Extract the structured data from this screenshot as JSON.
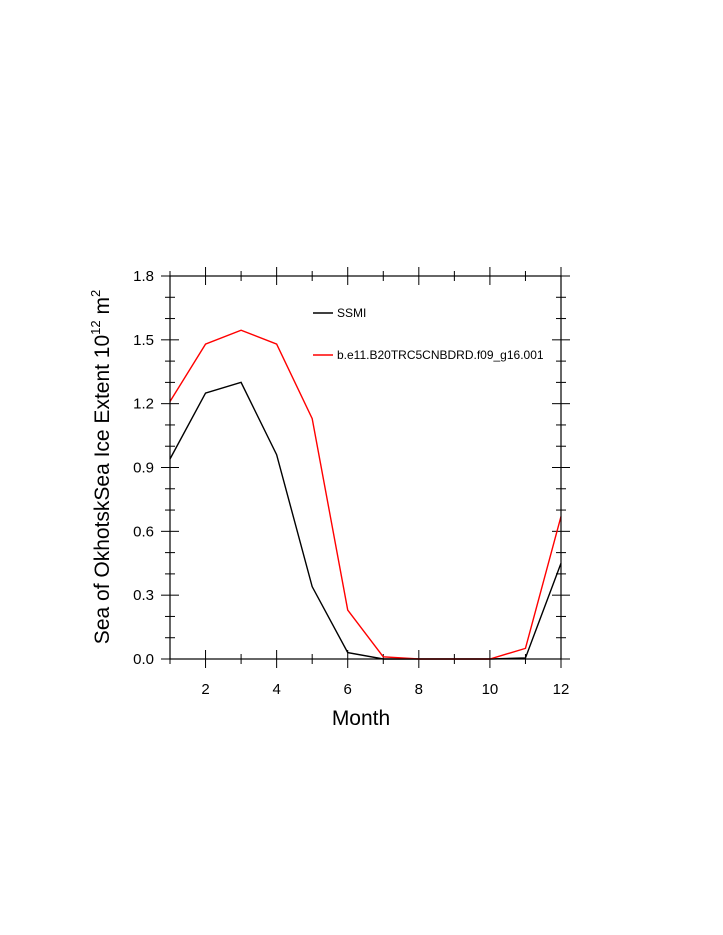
{
  "chart_data": {
    "type": "line",
    "title": "",
    "xlabel": "Month",
    "ylabel": {
      "main": "Sea of OkhotskSea Ice Extent 10",
      "exp": "12",
      "unit": " m",
      "unit_exp": "2"
    },
    "xlim": [
      1,
      12
    ],
    "ylim": [
      0,
      1.8
    ],
    "x": [
      1,
      2,
      3,
      4,
      5,
      6,
      7,
      8,
      9,
      10,
      11,
      12
    ],
    "x_ticks": [
      2,
      4,
      6,
      8,
      10,
      12
    ],
    "x_tick_labels": [
      "2",
      "4",
      "6",
      "8",
      "10",
      "12"
    ],
    "y_ticks": [
      0.0,
      0.3,
      0.6,
      0.9,
      1.2,
      1.5,
      1.8
    ],
    "y_tick_labels": [
      "0.0",
      "0.3",
      "0.6",
      "0.9",
      "1.2",
      "1.5",
      "1.8"
    ],
    "legend_position": "top-right",
    "series": [
      {
        "name": "SSMI",
        "color": "#000000",
        "values": [
          0.94,
          1.25,
          1.3,
          0.96,
          0.34,
          0.03,
          0.0,
          0.0,
          0.0,
          0.0,
          0.005,
          0.45
        ]
      },
      {
        "name": "b.e11.B20TRC5CNBDRD.f09_g16.001",
        "color": "#ff0000",
        "values": [
          1.21,
          1.48,
          1.545,
          1.48,
          1.13,
          0.23,
          0.01,
          0.0,
          0.0,
          0.0,
          0.05,
          0.67
        ]
      }
    ]
  }
}
